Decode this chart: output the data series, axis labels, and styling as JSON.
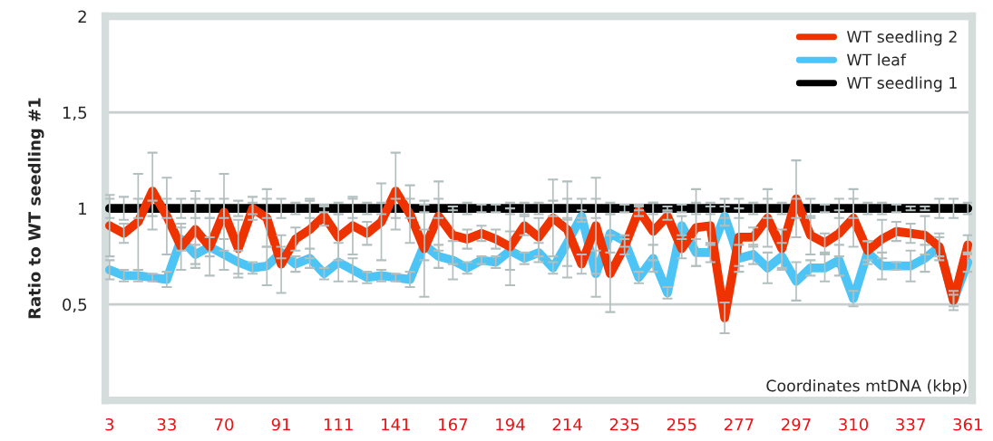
{
  "chart_data": {
    "type": "line",
    "ylabel": "Ratio to WT seedling #1",
    "xlabel": "Coordinates mtDNA (kbp)",
    "categories": [
      "3",
      null,
      null,
      null,
      "33",
      null,
      null,
      null,
      "70",
      null,
      null,
      null,
      "91",
      null,
      null,
      null,
      "111",
      null,
      null,
      null,
      "141",
      null,
      null,
      null,
      "167",
      null,
      null,
      null,
      "194",
      null,
      null,
      null,
      "214",
      null,
      null,
      null,
      "235",
      null,
      null,
      null,
      "255",
      null,
      null,
      null,
      "277",
      null,
      null,
      null,
      "297",
      null,
      null,
      null,
      "310",
      null,
      null,
      null,
      "337",
      null,
      null,
      null,
      "361"
    ],
    "series": [
      {
        "name": "WT seedling 2",
        "color": "#ee3300",
        "values": [
          0.91,
          0.87,
          0.93,
          1.09,
          0.96,
          0.8,
          0.89,
          0.8,
          0.98,
          0.79,
          1.0,
          0.95,
          0.71,
          0.84,
          0.89,
          0.96,
          0.85,
          0.91,
          0.87,
          0.93,
          1.09,
          0.97,
          0.79,
          0.96,
          0.86,
          0.84,
          0.87,
          0.84,
          0.8,
          0.91,
          0.85,
          0.95,
          0.89,
          0.71,
          0.91,
          0.66,
          0.8,
          0.99,
          0.88,
          0.96,
          0.79,
          0.9,
          0.91,
          0.43,
          0.85,
          0.85,
          0.95,
          0.79,
          1.05,
          0.86,
          0.82,
          0.87,
          0.95,
          0.78,
          0.84,
          0.88,
          0.87,
          0.86,
          0.8,
          0.52,
          0.81
        ],
        "errors": [
          0.16,
          0.05,
          0.25,
          0.2,
          0.2,
          0.12,
          0.2,
          0.15,
          0.2,
          0.15,
          0.06,
          0.15,
          0.15,
          0.06,
          0.15,
          0.05,
          0.12,
          0.15,
          0.06,
          0.2,
          0.2,
          0.15,
          0.25,
          0.18,
          0.15,
          0.05,
          0.04,
          0.05,
          0.2,
          0.05,
          0.1,
          0.2,
          0.25,
          0.05,
          0.25,
          0.2,
          0.04,
          0.03,
          0.15,
          0.02,
          0.05,
          0.2,
          0.1,
          0.08,
          0.15,
          0.05,
          0.15,
          0.1,
          0.2,
          0.1,
          0.05,
          0.12,
          0.15,
          0.05,
          0.1,
          0.05,
          0.05,
          0.1,
          0.05,
          0.05,
          0.05
        ]
      },
      {
        "name": "WT leaf",
        "color": "#4cc4f5",
        "values": [
          0.68,
          0.65,
          0.65,
          0.64,
          0.63,
          0.84,
          0.76,
          0.8,
          0.76,
          0.72,
          0.69,
          0.7,
          0.77,
          0.71,
          0.74,
          0.66,
          0.72,
          0.68,
          0.64,
          0.65,
          0.64,
          0.63,
          0.81,
          0.75,
          0.73,
          0.69,
          0.73,
          0.72,
          0.78,
          0.74,
          0.77,
          0.69,
          0.82,
          0.96,
          0.66,
          0.87,
          0.83,
          0.64,
          0.74,
          0.56,
          0.91,
          0.77,
          0.77,
          0.96,
          0.74,
          0.76,
          0.69,
          0.75,
          0.62,
          0.69,
          0.69,
          0.73,
          0.53,
          0.77,
          0.7,
          0.7,
          0.7,
          0.74,
          0.8,
          0.52,
          0.72
        ],
        "errors": [
          0.05,
          0.03,
          0.03,
          0.02,
          0.04,
          0.06,
          0.05,
          0.05,
          0.08,
          0.06,
          0.03,
          0.1,
          0.03,
          0.04,
          0.05,
          0.03,
          0.1,
          0.06,
          0.03,
          0.03,
          0.02,
          0.04,
          0.08,
          0.06,
          0.1,
          0.03,
          0.02,
          0.03,
          0.1,
          0.03,
          0.05,
          0.03,
          0.12,
          0.03,
          0.12,
          0.1,
          0.03,
          0.03,
          0.07,
          0.03,
          0.05,
          0.07,
          0.05,
          0.05,
          0.07,
          0.05,
          0.08,
          0.07,
          0.1,
          0.04,
          0.07,
          0.08,
          0.04,
          0.06,
          0.07,
          0.02,
          0.08,
          0.07,
          0.07,
          0.03,
          0.05
        ]
      },
      {
        "name": "WT seedling 1",
        "color": "#000000",
        "values": [
          1,
          1,
          1,
          1,
          1,
          1,
          1,
          1,
          1,
          1,
          1,
          1,
          1,
          1,
          1,
          1,
          1,
          1,
          1,
          1,
          1,
          1,
          1,
          1,
          1,
          1,
          1,
          1,
          1,
          1,
          1,
          1,
          1,
          1,
          1,
          1,
          1,
          1,
          1,
          1,
          1,
          1,
          1,
          1,
          1,
          1,
          1,
          1,
          1,
          1,
          1,
          1,
          1,
          1,
          1,
          1,
          1,
          1,
          1,
          1,
          1
        ],
        "errors": [
          0.05,
          0.06,
          0.05,
          0.04,
          0.05,
          0.05,
          0.05,
          0.05,
          0.05,
          0.04,
          0.03,
          0.05,
          0.05,
          0.03,
          0.05,
          0.02,
          0.03,
          0.05,
          0.03,
          0.03,
          0.05,
          0.05,
          0.02,
          0.05,
          0.01,
          0.03,
          0.02,
          0.02,
          0.03,
          0.03,
          0.03,
          0.04,
          0.05,
          0.05,
          0.05,
          0.03,
          0.02,
          0.01,
          0.03,
          0.01,
          0.02,
          0.03,
          0.03,
          0.05,
          0.05,
          0.03,
          0.05,
          0.03,
          0.05,
          0.05,
          0.02,
          0.05,
          0.05,
          0.03,
          0.03,
          0.02,
          0.01,
          0.01,
          0.05,
          0.05,
          0.03
        ]
      }
    ],
    "ylim": [
      0,
      2
    ],
    "yticks": [
      {
        "value": 0.5,
        "label": "0,5"
      },
      1,
      {
        "value": 1.5,
        "label": "1,5"
      },
      2
    ],
    "grid": "y",
    "legend": "top right",
    "marker": "none",
    "line_style": "solid"
  }
}
